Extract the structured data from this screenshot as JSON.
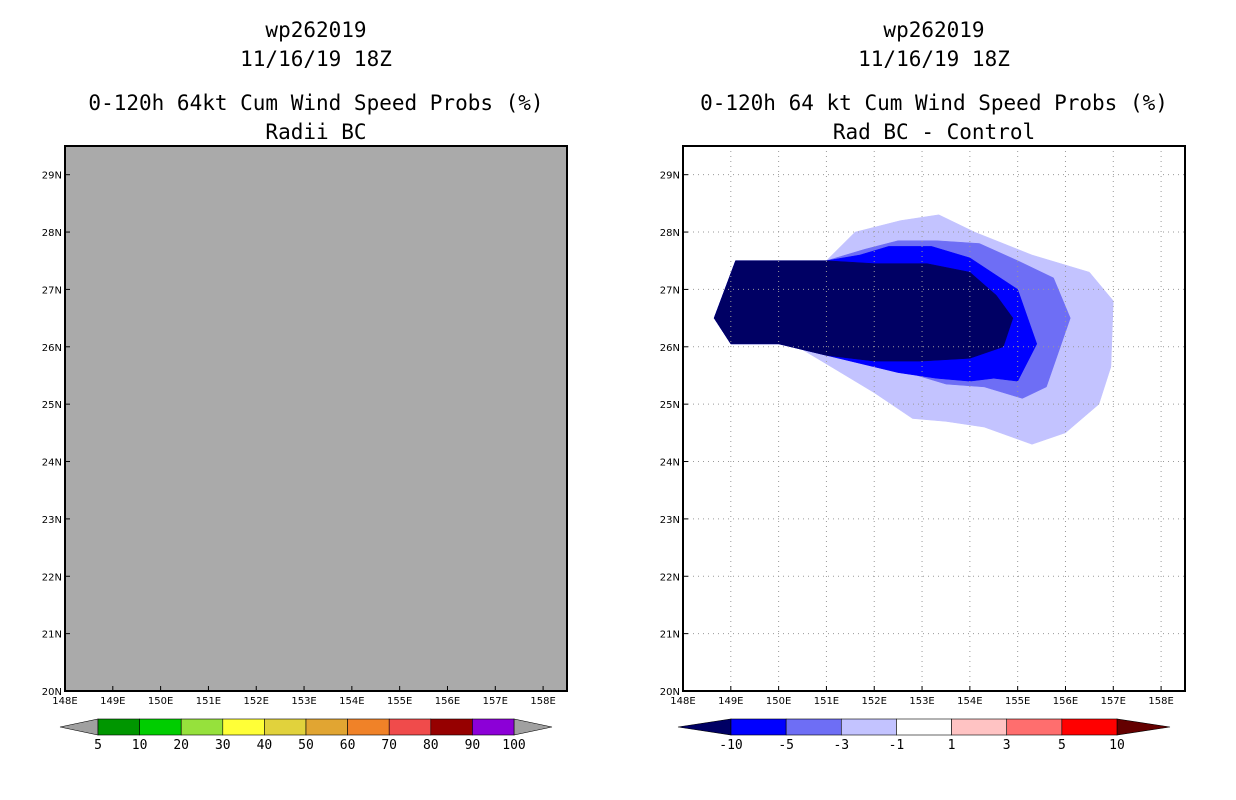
{
  "chart_data": [
    {
      "type": "heatmap",
      "title": [
        "wp262019",
        "11/16/19 18Z",
        "0-120h 64kt Cum Wind Speed Probs (%)",
        "Radii BC"
      ],
      "x_range": [
        148,
        158.5
      ],
      "y_range": [
        20,
        29.5
      ],
      "x_ticks": [
        148,
        149,
        150,
        151,
        152,
        153,
        154,
        155,
        156,
        157,
        158
      ],
      "x_tick_labels": [
        "148E",
        "149E",
        "150E",
        "151E",
        "152E",
        "153E",
        "154E",
        "155E",
        "156E",
        "157E",
        "158E"
      ],
      "y_ticks": [
        20,
        21,
        22,
        23,
        24,
        25,
        26,
        27,
        28,
        29
      ],
      "y_tick_labels": [
        "20N",
        "21N",
        "22N",
        "23N",
        "24N",
        "25N",
        "26N",
        "27N",
        "28N",
        "29N"
      ],
      "grid": false,
      "background_color": "#aaaaaa",
      "colorbar": {
        "levels": [
          "5",
          "10",
          "20",
          "30",
          "40",
          "50",
          "60",
          "70",
          "80",
          "90",
          "100"
        ],
        "low_color": "#a0a0a0",
        "high_color": "#a0a0a0",
        "colors": [
          "#009600",
          "#00cd00",
          "#96e13c",
          "#ffff37",
          "#e1d23c",
          "#e1a532",
          "#f08228",
          "#f04b4b",
          "#960000",
          "#8c00d7"
        ]
      },
      "regions": []
    },
    {
      "type": "heatmap",
      "title": [
        "wp262019",
        "11/16/19 18Z",
        "0-120h 64 kt Cum Wind Speed Probs (%)",
        "Rad BC - Control"
      ],
      "x_range": [
        148,
        158.5
      ],
      "y_range": [
        20,
        29.5
      ],
      "x_ticks": [
        148,
        149,
        150,
        151,
        152,
        153,
        154,
        155,
        156,
        157,
        158
      ],
      "x_tick_labels": [
        "148E",
        "149E",
        "150E",
        "151E",
        "152E",
        "153E",
        "154E",
        "155E",
        "156E",
        "157E",
        "158E"
      ],
      "y_ticks": [
        20,
        21,
        22,
        23,
        24,
        25,
        26,
        27,
        28,
        29
      ],
      "y_tick_labels": [
        "20N",
        "21N",
        "22N",
        "23N",
        "24N",
        "25N",
        "26N",
        "27N",
        "28N",
        "29N"
      ],
      "grid": true,
      "background_color": "#ffffff",
      "colorbar": {
        "levels": [
          "-10",
          "-5",
          "-3",
          "-1",
          "1",
          "3",
          "5",
          "10"
        ],
        "low_color": "#000064",
        "high_color": "#640000",
        "colors": [
          "#0000ff",
          "#6e6ef5",
          "#c3c3ff",
          "#ffffff",
          "#ffc3c3",
          "#ff6e6e",
          "#ff0000"
        ]
      },
      "regions": [
        {
          "name": "change-band-minus1-to-minus3",
          "color": "#c3c3ff",
          "points": [
            [
              148.65,
              26.5
            ],
            [
              149.1,
              27.5
            ],
            [
              151.0,
              27.5
            ],
            [
              151.6,
              28.0
            ],
            [
              152.55,
              28.2
            ],
            [
              153.35,
              28.3
            ],
            [
              154.1,
              28.0
            ],
            [
              155.3,
              27.6
            ],
            [
              156.5,
              27.3
            ],
            [
              157.0,
              26.8
            ],
            [
              156.95,
              25.65
            ],
            [
              156.7,
              25.0
            ],
            [
              156.0,
              24.5
            ],
            [
              155.3,
              24.3
            ],
            [
              154.3,
              24.6
            ],
            [
              153.5,
              24.7
            ],
            [
              152.8,
              24.75
            ],
            [
              152.0,
              25.2
            ],
            [
              151.2,
              25.6
            ],
            [
              150.2,
              26.1
            ],
            [
              149.0,
              26.1
            ]
          ]
        },
        {
          "name": "change-band-minus3-to-minus5",
          "color": "#6e6ef5",
          "points": [
            [
              148.65,
              26.5
            ],
            [
              149.1,
              27.5
            ],
            [
              151.0,
              27.5
            ],
            [
              151.8,
              27.7
            ],
            [
              152.5,
              27.85
            ],
            [
              153.3,
              27.85
            ],
            [
              154.2,
              27.8
            ],
            [
              155.0,
              27.5
            ],
            [
              155.75,
              27.2
            ],
            [
              156.1,
              26.5
            ],
            [
              155.6,
              25.3
            ],
            [
              155.1,
              25.1
            ],
            [
              154.3,
              25.3
            ],
            [
              153.5,
              25.35
            ],
            [
              152.5,
              25.6
            ],
            [
              151.5,
              25.8
            ],
            [
              150.0,
              26.05
            ],
            [
              149.0,
              26.05
            ]
          ]
        },
        {
          "name": "change-band-minus5-to-minus10",
          "color": "#0000ff",
          "points": [
            [
              148.65,
              26.5
            ],
            [
              149.1,
              27.5
            ],
            [
              151.0,
              27.5
            ],
            [
              151.7,
              27.6
            ],
            [
              152.3,
              27.75
            ],
            [
              153.2,
              27.75
            ],
            [
              154.0,
              27.55
            ],
            [
              155.0,
              27.0
            ],
            [
              155.4,
              26.05
            ],
            [
              155.0,
              25.4
            ],
            [
              154.5,
              25.45
            ],
            [
              154.0,
              25.4
            ],
            [
              153.3,
              25.45
            ],
            [
              152.5,
              25.55
            ],
            [
              151.5,
              25.75
            ],
            [
              150.0,
              26.05
            ],
            [
              149.0,
              26.05
            ]
          ]
        },
        {
          "name": "change-band-below-minus10",
          "color": "#000064",
          "points": [
            [
              148.65,
              26.5
            ],
            [
              149.1,
              27.5
            ],
            [
              151.0,
              27.5
            ],
            [
              152.0,
              27.45
            ],
            [
              153.1,
              27.45
            ],
            [
              154.0,
              27.3
            ],
            [
              154.55,
              26.9
            ],
            [
              154.9,
              26.5
            ],
            [
              154.7,
              26.0
            ],
            [
              154.0,
              25.8
            ],
            [
              153.0,
              25.75
            ],
            [
              152.0,
              25.75
            ],
            [
              151.0,
              25.85
            ],
            [
              150.0,
              26.05
            ],
            [
              149.0,
              26.05
            ]
          ]
        }
      ]
    }
  ]
}
